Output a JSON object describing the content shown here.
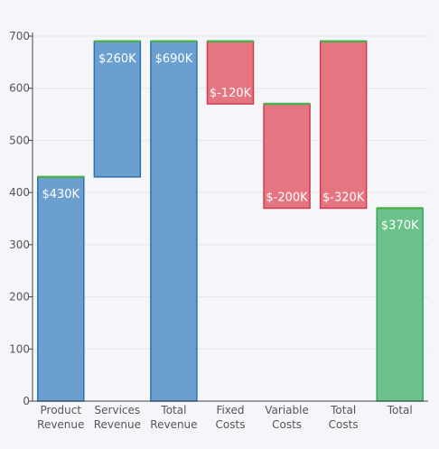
{
  "chart_data": {
    "type": "bar",
    "subtype": "waterfall",
    "categories": [
      [
        "Product",
        "Revenue"
      ],
      [
        "Services",
        "Revenue"
      ],
      [
        "Total",
        "Revenue"
      ],
      [
        "Fixed",
        "Costs"
      ],
      [
        "Variable",
        "Costs"
      ],
      [
        "Total",
        "Costs"
      ],
      [
        "Total"
      ]
    ],
    "bars": [
      {
        "base": 0,
        "top": 430,
        "kind": "increase",
        "label": "$430K"
      },
      {
        "base": 430,
        "top": 690,
        "kind": "increase",
        "label": "$260K"
      },
      {
        "base": 0,
        "top": 690,
        "kind": "increase",
        "label": "$690K"
      },
      {
        "base": 570,
        "top": 690,
        "kind": "decrease",
        "label": "$-120K"
      },
      {
        "base": 370,
        "top": 570,
        "kind": "decrease",
        "label": "$-200K"
      },
      {
        "base": 370,
        "top": 690,
        "kind": "decrease",
        "label": "$-320K"
      },
      {
        "base": 0,
        "top": 370,
        "kind": "total",
        "label": "$370K"
      }
    ],
    "ylim": [
      0,
      700
    ],
    "yticks": [
      0,
      100,
      200,
      300,
      400,
      500,
      600,
      700
    ],
    "grid": true,
    "colors": {
      "increase_fill": "#6a9fd0",
      "increase_stroke": "#2f6fb0",
      "decrease_fill": "#e57580",
      "decrease_stroke": "#d23a4d",
      "total_fill": "#6bc18a",
      "total_stroke": "#3aa35e",
      "top_cap": "#4caf50",
      "label": "#ffffff",
      "tick_label": "#555555",
      "grid": "#e4e6ec",
      "axis": "#444444"
    }
  }
}
